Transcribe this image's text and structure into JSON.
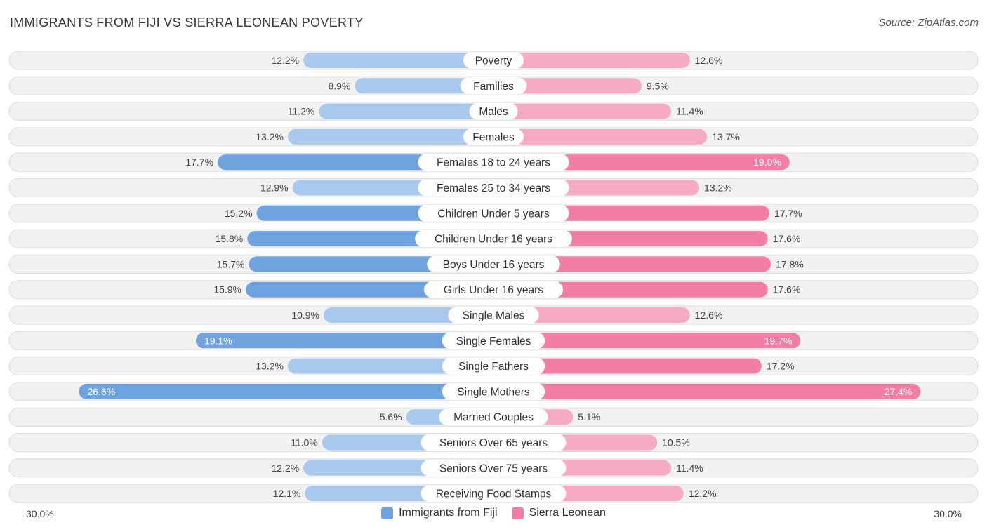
{
  "title": "IMMIGRANTS FROM FIJI VS SIERRA LEONEAN POVERTY",
  "source": "Source: ZipAtlas.com",
  "colors": {
    "left": "#6fa3e0",
    "left_light": "#a9c8ee",
    "right": "#f27ea5",
    "right_light": "#f7aac4",
    "track": "#f1f1f1",
    "track_border": "#dcdcdc"
  },
  "legend": {
    "left_label": "Immigrants from Fiji",
    "right_label": "Sierra Leonean"
  },
  "axis": {
    "left_label": "30.0%",
    "right_label": "30.0%"
  },
  "chart_data": {
    "type": "bar",
    "orientation": "diverging-horizontal",
    "title": "IMMIGRANTS FROM FIJI VS SIERRA LEONEAN POVERTY",
    "xlim": [
      -30,
      30
    ],
    "series": [
      {
        "name": "Immigrants from Fiji",
        "values": [
          12.2,
          8.9,
          11.2,
          13.2,
          17.7,
          12.9,
          15.2,
          15.8,
          15.7,
          15.9,
          10.9,
          19.1,
          13.2,
          26.6,
          5.6,
          11.0,
          12.2,
          12.1
        ]
      },
      {
        "name": "Sierra Leonean",
        "values": [
          12.6,
          9.5,
          11.4,
          13.7,
          19.0,
          13.2,
          17.7,
          17.6,
          17.8,
          17.6,
          12.6,
          19.7,
          17.2,
          27.4,
          5.1,
          10.5,
          11.4,
          12.2
        ]
      }
    ],
    "categories": [
      "Poverty",
      "Families",
      "Males",
      "Females",
      "Females 18 to 24 years",
      "Females 25 to 34 years",
      "Children Under 5 years",
      "Children Under 16 years",
      "Boys Under 16 years",
      "Girls Under 16 years",
      "Single Males",
      "Single Females",
      "Single Fathers",
      "Single Mothers",
      "Married Couples",
      "Seniors Over 65 years",
      "Seniors Over 75 years",
      "Receiving Food Stamps"
    ],
    "left_labels": [
      "12.2%",
      "8.9%",
      "11.2%",
      "13.2%",
      "17.7%",
      "12.9%",
      "15.2%",
      "15.8%",
      "15.7%",
      "15.9%",
      "10.9%",
      "19.1%",
      "13.2%",
      "26.6%",
      "5.6%",
      "11.0%",
      "12.2%",
      "12.1%"
    ],
    "right_labels": [
      "12.6%",
      "9.5%",
      "11.4%",
      "13.7%",
      "19.0%",
      "13.2%",
      "17.7%",
      "17.6%",
      "17.8%",
      "17.6%",
      "12.6%",
      "19.7%",
      "17.2%",
      "27.4%",
      "5.1%",
      "10.5%",
      "11.4%",
      "12.2%"
    ]
  }
}
